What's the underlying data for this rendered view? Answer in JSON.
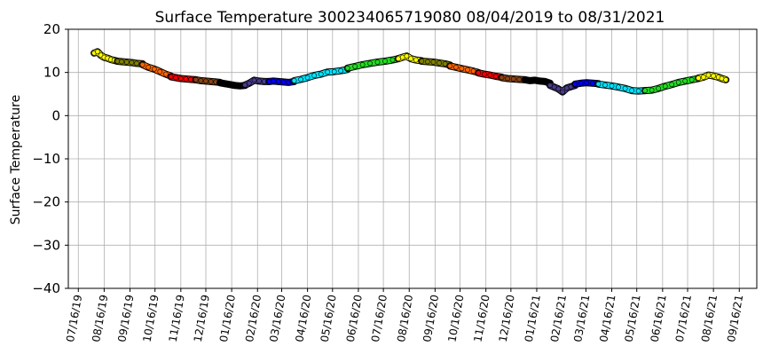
{
  "chart_data": {
    "type": "scatter",
    "title": "Surface Temperature 300234065719080  08/04/2019 to 08/31/2021",
    "ylabel": "Surface Temperature",
    "xlabel": "",
    "ylim": [
      -40,
      20
    ],
    "yticks": [
      20,
      10,
      0,
      -10,
      -20,
      -30,
      -40
    ],
    "yticklabels": [
      "20",
      "10",
      "0",
      "−10",
      "−20",
      "−30",
      "−40"
    ],
    "xlim": [
      "2019-07-04",
      "2021-10-07"
    ],
    "xticks": [
      "2019-07-16",
      "2019-08-16",
      "2019-09-16",
      "2019-10-16",
      "2019-11-16",
      "2019-12-16",
      "2020-01-16",
      "2020-02-16",
      "2020-03-16",
      "2020-04-16",
      "2020-05-16",
      "2020-06-16",
      "2020-07-16",
      "2020-08-16",
      "2020-09-16",
      "2020-10-16",
      "2020-11-16",
      "2020-12-16",
      "2021-01-16",
      "2021-02-16",
      "2021-03-16",
      "2021-04-16",
      "2021-05-16",
      "2021-06-16",
      "2021-07-16",
      "2021-08-16",
      "2021-09-16"
    ],
    "xticklabels": [
      "07/16/19",
      "08/16/19",
      "09/16/19",
      "10/16/19",
      "11/16/19",
      "12/16/19",
      "01/16/20",
      "02/16/20",
      "03/16/20",
      "04/16/20",
      "05/16/20",
      "06/16/20",
      "07/16/20",
      "08/16/20",
      "09/16/20",
      "10/16/20",
      "11/16/20",
      "12/16/20",
      "01/16/21",
      "02/16/21",
      "03/16/21",
      "04/16/21",
      "05/16/21",
      "06/16/21",
      "07/16/21",
      "08/16/21",
      "09/16/21"
    ],
    "grid": true,
    "marker_edge_color": "#000000",
    "series": [
      {
        "color": "#ffff00",
        "x": [
          "2019-08-04",
          "2019-08-08",
          "2019-08-12",
          "2019-08-16",
          "2019-08-20",
          "2019-08-24",
          "2019-08-28",
          "2019-09-01"
        ],
        "y": [
          14.5,
          14.8,
          14.0,
          13.5,
          13.3,
          13.0,
          12.8,
          12.6
        ]
      },
      {
        "color": "#808000",
        "x": [
          "2019-09-01",
          "2019-09-06",
          "2019-09-12",
          "2019-09-18",
          "2019-09-24",
          "2019-10-01"
        ],
        "y": [
          12.6,
          12.5,
          12.4,
          12.3,
          12.1,
          12.0
        ]
      },
      {
        "color": "#ff6600",
        "x": [
          "2019-10-01",
          "2019-10-08",
          "2019-10-15",
          "2019-10-22",
          "2019-10-29",
          "2019-11-04"
        ],
        "y": [
          11.8,
          11.2,
          10.8,
          10.2,
          9.6,
          9.2
        ]
      },
      {
        "color": "#ff0000",
        "x": [
          "2019-11-04",
          "2019-11-10",
          "2019-11-16",
          "2019-11-22",
          "2019-11-28",
          "2019-12-04"
        ],
        "y": [
          9.0,
          8.8,
          8.6,
          8.5,
          8.4,
          8.3
        ]
      },
      {
        "color": "#8b4513",
        "x": [
          "2019-12-04",
          "2019-12-10",
          "2019-12-16",
          "2019-12-22",
          "2019-12-28",
          "2020-01-02"
        ],
        "y": [
          8.3,
          8.1,
          8.0,
          7.9,
          7.8,
          7.7
        ]
      },
      {
        "color": "#000000",
        "x": [
          "2020-01-02",
          "2020-01-08",
          "2020-01-14",
          "2020-01-20",
          "2020-01-26",
          "2020-02-01"
        ],
        "y": [
          7.6,
          7.4,
          7.2,
          7.0,
          6.9,
          7.0
        ]
      },
      {
        "color": "#483d8b",
        "x": [
          "2020-02-01",
          "2020-02-06",
          "2020-02-12",
          "2020-02-18",
          "2020-02-24",
          "2020-03-01"
        ],
        "y": [
          7.1,
          7.5,
          8.2,
          8.0,
          7.9,
          7.9
        ]
      },
      {
        "color": "#0000ff",
        "x": [
          "2020-03-01",
          "2020-03-06",
          "2020-03-12",
          "2020-03-18",
          "2020-03-24",
          "2020-03-31"
        ],
        "y": [
          7.9,
          8.0,
          7.9,
          7.8,
          7.7,
          7.9
        ]
      },
      {
        "color": "#00e5ff",
        "x": [
          "2020-03-31",
          "2020-04-08",
          "2020-04-16",
          "2020-04-24",
          "2020-05-02",
          "2020-05-10",
          "2020-05-18",
          "2020-05-26",
          "2020-06-03"
        ],
        "y": [
          8.1,
          8.4,
          8.8,
          9.3,
          9.6,
          10.1,
          10.2,
          10.4,
          10.7
        ]
      },
      {
        "color": "#22dd22",
        "x": [
          "2020-06-03",
          "2020-06-12",
          "2020-06-21",
          "2020-06-30",
          "2020-07-09",
          "2020-07-18",
          "2020-07-27",
          "2020-08-03"
        ],
        "y": [
          11.0,
          11.4,
          11.8,
          12.1,
          12.4,
          12.6,
          12.9,
          13.2
        ]
      },
      {
        "color": "#ffff00",
        "x": [
          "2020-08-03",
          "2020-08-08",
          "2020-08-13",
          "2020-08-18",
          "2020-08-24",
          "2020-08-31"
        ],
        "y": [
          13.2,
          13.5,
          13.8,
          13.2,
          12.9,
          12.7
        ]
      },
      {
        "color": "#808000",
        "x": [
          "2020-08-31",
          "2020-09-07",
          "2020-09-14",
          "2020-09-21",
          "2020-09-28",
          "2020-10-04"
        ],
        "y": [
          12.6,
          12.5,
          12.4,
          12.2,
          12.0,
          11.7
        ]
      },
      {
        "color": "#ff6600",
        "x": [
          "2020-10-04",
          "2020-10-11",
          "2020-10-18",
          "2020-10-25",
          "2020-11-01",
          "2020-11-07"
        ],
        "y": [
          11.5,
          11.2,
          10.9,
          10.6,
          10.3,
          10.0
        ]
      },
      {
        "color": "#ff0000",
        "x": [
          "2020-11-07",
          "2020-11-14",
          "2020-11-21",
          "2020-11-28",
          "2020-12-05"
        ],
        "y": [
          9.9,
          9.6,
          9.4,
          9.1,
          8.9
        ]
      },
      {
        "color": "#8b4513",
        "x": [
          "2020-12-05",
          "2020-12-12",
          "2020-12-19",
          "2020-12-26",
          "2021-01-02"
        ],
        "y": [
          8.8,
          8.6,
          8.5,
          8.4,
          8.3
        ]
      },
      {
        "color": "#000000",
        "x": [
          "2021-01-02",
          "2021-01-08",
          "2021-01-14",
          "2021-01-20",
          "2021-01-26",
          "2021-02-01"
        ],
        "y": [
          8.3,
          8.1,
          8.2,
          8.0,
          7.9,
          7.5
        ]
      },
      {
        "color": "#483d8b",
        "x": [
          "2021-02-01",
          "2021-02-06",
          "2021-02-11",
          "2021-02-16",
          "2021-02-21",
          "2021-02-26",
          "2021-03-03"
        ],
        "y": [
          7.0,
          6.6,
          6.2,
          5.5,
          6.4,
          6.7,
          7.0
        ]
      },
      {
        "color": "#0000ff",
        "x": [
          "2021-03-03",
          "2021-03-10",
          "2021-03-17",
          "2021-03-24",
          "2021-03-31"
        ],
        "y": [
          7.3,
          7.5,
          7.6,
          7.5,
          7.4
        ]
      },
      {
        "color": "#00e5ff",
        "x": [
          "2021-03-31",
          "2021-04-08",
          "2021-04-16",
          "2021-04-24",
          "2021-05-02",
          "2021-05-10",
          "2021-05-18",
          "2021-05-26"
        ],
        "y": [
          7.3,
          7.1,
          6.9,
          6.6,
          6.3,
          5.8,
          5.7,
          5.8
        ]
      },
      {
        "color": "#22dd22",
        "x": [
          "2021-05-26",
          "2021-06-03",
          "2021-06-11",
          "2021-06-19",
          "2021-06-27",
          "2021-07-05",
          "2021-07-13",
          "2021-07-21",
          "2021-07-29"
        ],
        "y": [
          5.8,
          5.9,
          6.3,
          6.8,
          7.2,
          7.7,
          8.0,
          8.3,
          8.6
        ]
      },
      {
        "color": "#ffff00",
        "x": [
          "2021-07-29",
          "2021-08-04",
          "2021-08-10",
          "2021-08-16",
          "2021-08-22",
          "2021-08-26",
          "2021-08-31"
        ],
        "y": [
          8.7,
          8.9,
          9.4,
          9.2,
          8.9,
          8.6,
          8.3
        ]
      }
    ]
  }
}
